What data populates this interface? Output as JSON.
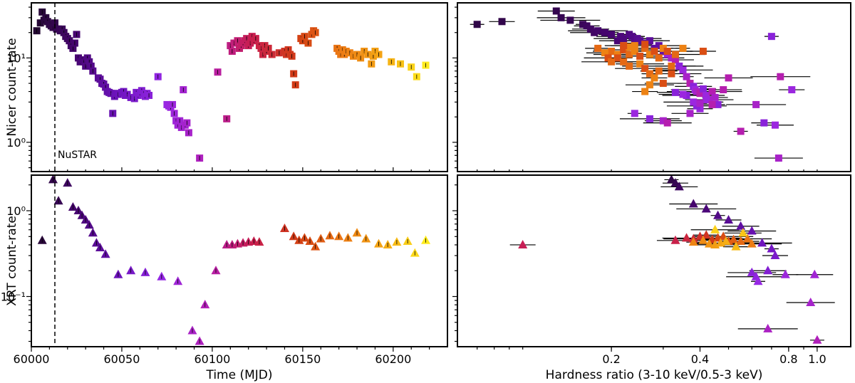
{
  "chart_data": [
    {
      "id": "nicer_lc",
      "type": "scatter",
      "marker": "square",
      "ylabel": "Nicer count-rate",
      "yscale": "log",
      "ylim": [
        0.45,
        45
      ],
      "xlim": [
        60000,
        60230
      ],
      "yticks": [
        {
          "v": 1,
          "label": "10⁰"
        },
        {
          "v": 10,
          "label": "10¹"
        }
      ],
      "annotation": {
        "text": "NuSTAR",
        "x": 60013
      },
      "points": [
        [
          60003,
          21
        ],
        [
          60005,
          26
        ],
        [
          60006,
          35
        ],
        [
          60007,
          28
        ],
        [
          60008,
          30
        ],
        [
          60009,
          27
        ],
        [
          60010,
          25
        ],
        [
          60011,
          24
        ],
        [
          60012,
          23
        ],
        [
          60013,
          26
        ],
        [
          60014,
          22
        ],
        [
          60015,
          22
        ],
        [
          60016,
          21
        ],
        [
          60017,
          22
        ],
        [
          60018,
          20
        ],
        [
          60019,
          18
        ],
        [
          60020,
          17
        ],
        [
          60021,
          16
        ],
        [
          60022,
          14
        ],
        [
          60023,
          13
        ],
        [
          60024,
          15
        ],
        [
          60025,
          19
        ],
        [
          60026,
          10
        ],
        [
          60027,
          9
        ],
        [
          60028,
          9.5
        ],
        [
          60029,
          9
        ],
        [
          60030,
          8
        ],
        [
          60031,
          10
        ],
        [
          60032,
          9
        ],
        [
          60033,
          8
        ],
        [
          60034,
          7
        ],
        [
          60037,
          5.8
        ],
        [
          60038,
          5.6
        ],
        [
          60039,
          5
        ],
        [
          60040,
          4.9
        ],
        [
          60041,
          4.5
        ],
        [
          60042,
          4.0
        ],
        [
          60043,
          3.9
        ],
        [
          60044,
          3.8
        ],
        [
          60045,
          2.2
        ],
        [
          60046,
          3.5
        ],
        [
          60047,
          3.8
        ],
        [
          60048,
          3.7
        ],
        [
          60050,
          3.9
        ],
        [
          60051,
          4.0
        ],
        [
          60052,
          3.6
        ],
        [
          60053,
          3.7
        ],
        [
          60055,
          3.4
        ],
        [
          60057,
          3.3
        ],
        [
          60058,
          3.9
        ],
        [
          60059,
          3.6
        ],
        [
          60060,
          3.8
        ],
        [
          60061,
          4.1
        ],
        [
          60062,
          3.8
        ],
        [
          60063,
          3.5
        ],
        [
          60064,
          3.8
        ],
        [
          60065,
          3.6
        ],
        [
          60070,
          6.0
        ],
        [
          60075,
          2.8
        ],
        [
          60076,
          2.7
        ],
        [
          60077,
          2.6
        ],
        [
          60078,
          2.8
        ],
        [
          60079,
          2.2
        ],
        [
          60080,
          1.8
        ],
        [
          60081,
          1.6
        ],
        [
          60082,
          1.8
        ],
        [
          60083,
          1.5
        ],
        [
          60084,
          4.2
        ],
        [
          60085,
          1.6
        ],
        [
          60086,
          1.7
        ],
        [
          60087,
          1.3
        ],
        [
          60093,
          0.65
        ],
        [
          60103,
          6.8
        ],
        [
          60108,
          1.9
        ],
        [
          60110,
          14
        ],
        [
          60111,
          12
        ],
        [
          60112,
          15
        ],
        [
          60114,
          16
        ],
        [
          60115,
          13
        ],
        [
          60116,
          14
        ],
        [
          60117,
          15
        ],
        [
          60118,
          16
        ],
        [
          60119,
          17
        ],
        [
          60120,
          14
        ],
        [
          60121,
          15
        ],
        [
          60122,
          18
        ],
        [
          60123,
          16
        ],
        [
          60124,
          17
        ],
        [
          60126,
          14
        ],
        [
          60127,
          13
        ],
        [
          60128,
          11
        ],
        [
          60129,
          14
        ],
        [
          60130,
          12
        ],
        [
          60131,
          13
        ],
        [
          60133,
          11
        ],
        [
          60137,
          11.5
        ],
        [
          60140,
          12
        ],
        [
          60141,
          11
        ],
        [
          60142,
          12.5
        ],
        [
          60143,
          11
        ],
        [
          60144,
          10.5
        ],
        [
          60145,
          6.5
        ],
        [
          60146,
          4.8
        ],
        [
          60149,
          17
        ],
        [
          60150,
          16
        ],
        [
          60151,
          18
        ],
        [
          60153,
          15
        ],
        [
          60155,
          19
        ],
        [
          60156,
          21
        ],
        [
          60157,
          20
        ],
        [
          60169,
          13
        ],
        [
          60170,
          12
        ],
        [
          60171,
          11
        ],
        [
          60172,
          12.5
        ],
        [
          60173,
          11
        ],
        [
          60174,
          12
        ],
        [
          60176,
          11.5
        ],
        [
          60178,
          10.5
        ],
        [
          60180,
          11
        ],
        [
          60182,
          10
        ],
        [
          60184,
          12
        ],
        [
          60186,
          11
        ],
        [
          60188,
          8.5
        ],
        [
          60189,
          10.5
        ],
        [
          60190,
          12
        ],
        [
          60192,
          11
        ],
        [
          60199,
          9
        ],
        [
          60204,
          8.5
        ],
        [
          60210,
          7.8
        ],
        [
          60213,
          6.0
        ],
        [
          60218,
          8.2
        ]
      ]
    },
    {
      "id": "xrt_lc",
      "type": "scatter",
      "marker": "triangle",
      "ylabel": "XRT count-rate",
      "xlabel": "Time (MJD)",
      "yscale": "log",
      "ylim": [
        0.026,
        2.6
      ],
      "xlim": [
        60000,
        60230
      ],
      "xticks": [
        60000,
        60050,
        60100,
        60150,
        60200
      ],
      "yticks": [
        {
          "v": 0.1,
          "label": "10⁻¹"
        },
        {
          "v": 1,
          "label": "10⁰"
        }
      ],
      "points": [
        [
          60006,
          0.45
        ],
        [
          60012,
          2.3
        ],
        [
          60015,
          1.3
        ],
        [
          60020,
          2.1
        ],
        [
          60023,
          1.1
        ],
        [
          60026,
          1.0
        ],
        [
          60028,
          0.88
        ],
        [
          60030,
          0.78
        ],
        [
          60032,
          0.68
        ],
        [
          60034,
          0.55
        ],
        [
          60036,
          0.42
        ],
        [
          60038,
          0.37
        ],
        [
          60041,
          0.31
        ],
        [
          60048,
          0.18
        ],
        [
          60055,
          0.2
        ],
        [
          60063,
          0.19
        ],
        [
          60072,
          0.17
        ],
        [
          60081,
          0.15
        ],
        [
          60089,
          0.04
        ],
        [
          60093,
          0.03
        ],
        [
          60096,
          0.08
        ],
        [
          60102,
          0.2
        ],
        [
          60108,
          0.4
        ],
        [
          60111,
          0.4
        ],
        [
          60114,
          0.41
        ],
        [
          60117,
          0.42
        ],
        [
          60120,
          0.43
        ],
        [
          60123,
          0.44
        ],
        [
          60126,
          0.43
        ],
        [
          60140,
          0.62
        ],
        [
          60145,
          0.5
        ],
        [
          60148,
          0.45
        ],
        [
          60151,
          0.48
        ],
        [
          60154,
          0.44
        ],
        [
          60157,
          0.38
        ],
        [
          60160,
          0.47
        ],
        [
          60165,
          0.51
        ],
        [
          60170,
          0.5
        ],
        [
          60175,
          0.48
        ],
        [
          60180,
          0.55
        ],
        [
          60185,
          0.47
        ],
        [
          60192,
          0.41
        ],
        [
          60197,
          0.4
        ],
        [
          60202,
          0.43
        ],
        [
          60208,
          0.44
        ],
        [
          60212,
          0.32
        ],
        [
          60218,
          0.45
        ]
      ]
    },
    {
      "id": "nicer_hr",
      "type": "scatter",
      "marker": "square",
      "xscale": "log",
      "xlim": [
        0.06,
        1.3
      ],
      "ylim": [
        0.45,
        45
      ],
      "points": [
        [
          0.07,
          25
        ],
        [
          0.085,
          27
        ],
        [
          0.13,
          36
        ],
        [
          0.135,
          30
        ],
        [
          0.145,
          28
        ],
        [
          0.16,
          25
        ],
        [
          0.165,
          24
        ],
        [
          0.17,
          22
        ],
        [
          0.175,
          20
        ],
        [
          0.18,
          21
        ],
        [
          0.19,
          20
        ],
        [
          0.2,
          19
        ],
        [
          0.21,
          16
        ],
        [
          0.215,
          18
        ],
        [
          0.22,
          17
        ],
        [
          0.23,
          19
        ],
        [
          0.235,
          18
        ],
        [
          0.24,
          15
        ],
        [
          0.245,
          17
        ],
        [
          0.25,
          16
        ],
        [
          0.26,
          15
        ],
        [
          0.27,
          16
        ],
        [
          0.28,
          13
        ],
        [
          0.29,
          14
        ],
        [
          0.3,
          12
        ],
        [
          0.31,
          11
        ],
        [
          0.32,
          10
        ],
        [
          0.33,
          9.5
        ],
        [
          0.34,
          8
        ],
        [
          0.35,
          7.2
        ],
        [
          0.36,
          6
        ],
        [
          0.37,
          5
        ],
        [
          0.38,
          4.6
        ],
        [
          0.385,
          4.2
        ],
        [
          0.39,
          4
        ],
        [
          0.4,
          3.8
        ],
        [
          0.41,
          4.3
        ],
        [
          0.42,
          3.6
        ],
        [
          0.43,
          3.2
        ],
        [
          0.44,
          4.0
        ],
        [
          0.46,
          2.8
        ],
        [
          0.4,
          2.5
        ],
        [
          0.37,
          2.2
        ],
        [
          0.5,
          5.8
        ],
        [
          0.39,
          2.7
        ],
        [
          0.42,
          3.2
        ],
        [
          0.45,
          3.4
        ],
        [
          0.48,
          4.2
        ],
        [
          0.36,
          3.6
        ],
        [
          0.38,
          3.0
        ],
        [
          0.4,
          2.9
        ],
        [
          0.44,
          2.8
        ],
        [
          0.33,
          3.9
        ],
        [
          0.35,
          3.7
        ],
        [
          0.62,
          2.8
        ],
        [
          0.55,
          1.35
        ],
        [
          0.66,
          1.7
        ],
        [
          0.72,
          1.6
        ],
        [
          0.74,
          0.65
        ],
        [
          0.75,
          6
        ],
        [
          0.7,
          18
        ],
        [
          0.82,
          4.2
        ],
        [
          0.3,
          1.8
        ],
        [
          0.31,
          1.7
        ],
        [
          0.27,
          1.9
        ],
        [
          0.24,
          2.2
        ],
        [
          0.41,
          12
        ],
        [
          0.2,
          12
        ],
        [
          0.21,
          11
        ],
        [
          0.22,
          12.5
        ],
        [
          0.23,
          11
        ],
        [
          0.24,
          12
        ],
        [
          0.25,
          10.5
        ],
        [
          0.26,
          13
        ],
        [
          0.27,
          11
        ],
        [
          0.28,
          12
        ],
        [
          0.29,
          10
        ],
        [
          0.3,
          13
        ],
        [
          0.31,
          12
        ],
        [
          0.33,
          11
        ],
        [
          0.35,
          13
        ],
        [
          0.21,
          10
        ],
        [
          0.22,
          9
        ],
        [
          0.25,
          8.5
        ],
        [
          0.26,
          7.5
        ],
        [
          0.27,
          6.5
        ],
        [
          0.28,
          5.8
        ],
        [
          0.3,
          5
        ],
        [
          0.32,
          8
        ],
        [
          0.24,
          14
        ],
        [
          0.26,
          14.5
        ],
        [
          0.18,
          13
        ],
        [
          0.19,
          11.5
        ],
        [
          0.195,
          10
        ],
        [
          0.2,
          9
        ],
        [
          0.23,
          13.5
        ],
        [
          0.22,
          14
        ],
        [
          0.29,
          7
        ],
        [
          0.27,
          4.8
        ],
        [
          0.32,
          6.5
        ],
        [
          0.23,
          8
        ],
        [
          0.26,
          4
        ]
      ],
      "colors_note": "points colored by time"
    },
    {
      "id": "xrt_hr",
      "type": "scatter",
      "marker": "triangle",
      "xlabel": "Hardness ratio (3-10 keV/0.5-3 keV)",
      "xscale": "log",
      "xlim": [
        0.06,
        1.3
      ],
      "xticks": [
        {
          "v": 0.2,
          "label": "0.2"
        },
        {
          "v": 0.4,
          "label": "0.4"
        },
        {
          "v": 0.8,
          "label": "0.8"
        },
        {
          "v": 1.0,
          "label": "1.0"
        }
      ],
      "ylim": [
        0.026,
        2.6
      ],
      "points": [
        [
          0.32,
          2.3
        ],
        [
          0.33,
          2.1
        ],
        [
          0.34,
          1.9
        ],
        [
          0.38,
          1.2
        ],
        [
          0.42,
          1.05
        ],
        [
          0.46,
          0.88
        ],
        [
          0.5,
          0.78
        ],
        [
          0.55,
          0.66
        ],
        [
          0.6,
          0.58
        ],
        [
          0.65,
          0.42
        ],
        [
          0.7,
          0.36
        ],
        [
          0.72,
          0.3
        ],
        [
          0.68,
          0.2
        ],
        [
          0.6,
          0.19
        ],
        [
          0.62,
          0.17
        ],
        [
          0.63,
          0.15
        ],
        [
          0.78,
          0.18
        ],
        [
          0.98,
          0.18
        ],
        [
          0.95,
          0.085
        ],
        [
          0.68,
          0.042
        ],
        [
          1.0,
          0.031
        ],
        [
          0.1,
          0.4
        ],
        [
          0.33,
          0.45
        ],
        [
          0.36,
          0.48
        ],
        [
          0.38,
          0.47
        ],
        [
          0.4,
          0.5
        ],
        [
          0.42,
          0.52
        ],
        [
          0.44,
          0.46
        ],
        [
          0.46,
          0.48
        ],
        [
          0.48,
          0.5
        ],
        [
          0.5,
          0.44
        ],
        [
          0.52,
          0.46
        ],
        [
          0.55,
          0.44
        ],
        [
          0.58,
          0.47
        ],
        [
          0.6,
          0.41
        ],
        [
          0.38,
          0.43
        ],
        [
          0.41,
          0.45
        ],
        [
          0.43,
          0.41
        ],
        [
          0.45,
          0.4
        ],
        [
          0.47,
          0.42
        ],
        [
          0.49,
          0.44
        ],
        [
          0.53,
          0.38
        ],
        [
          0.56,
          0.55
        ],
        [
          0.45,
          0.6
        ]
      ]
    }
  ]
}
